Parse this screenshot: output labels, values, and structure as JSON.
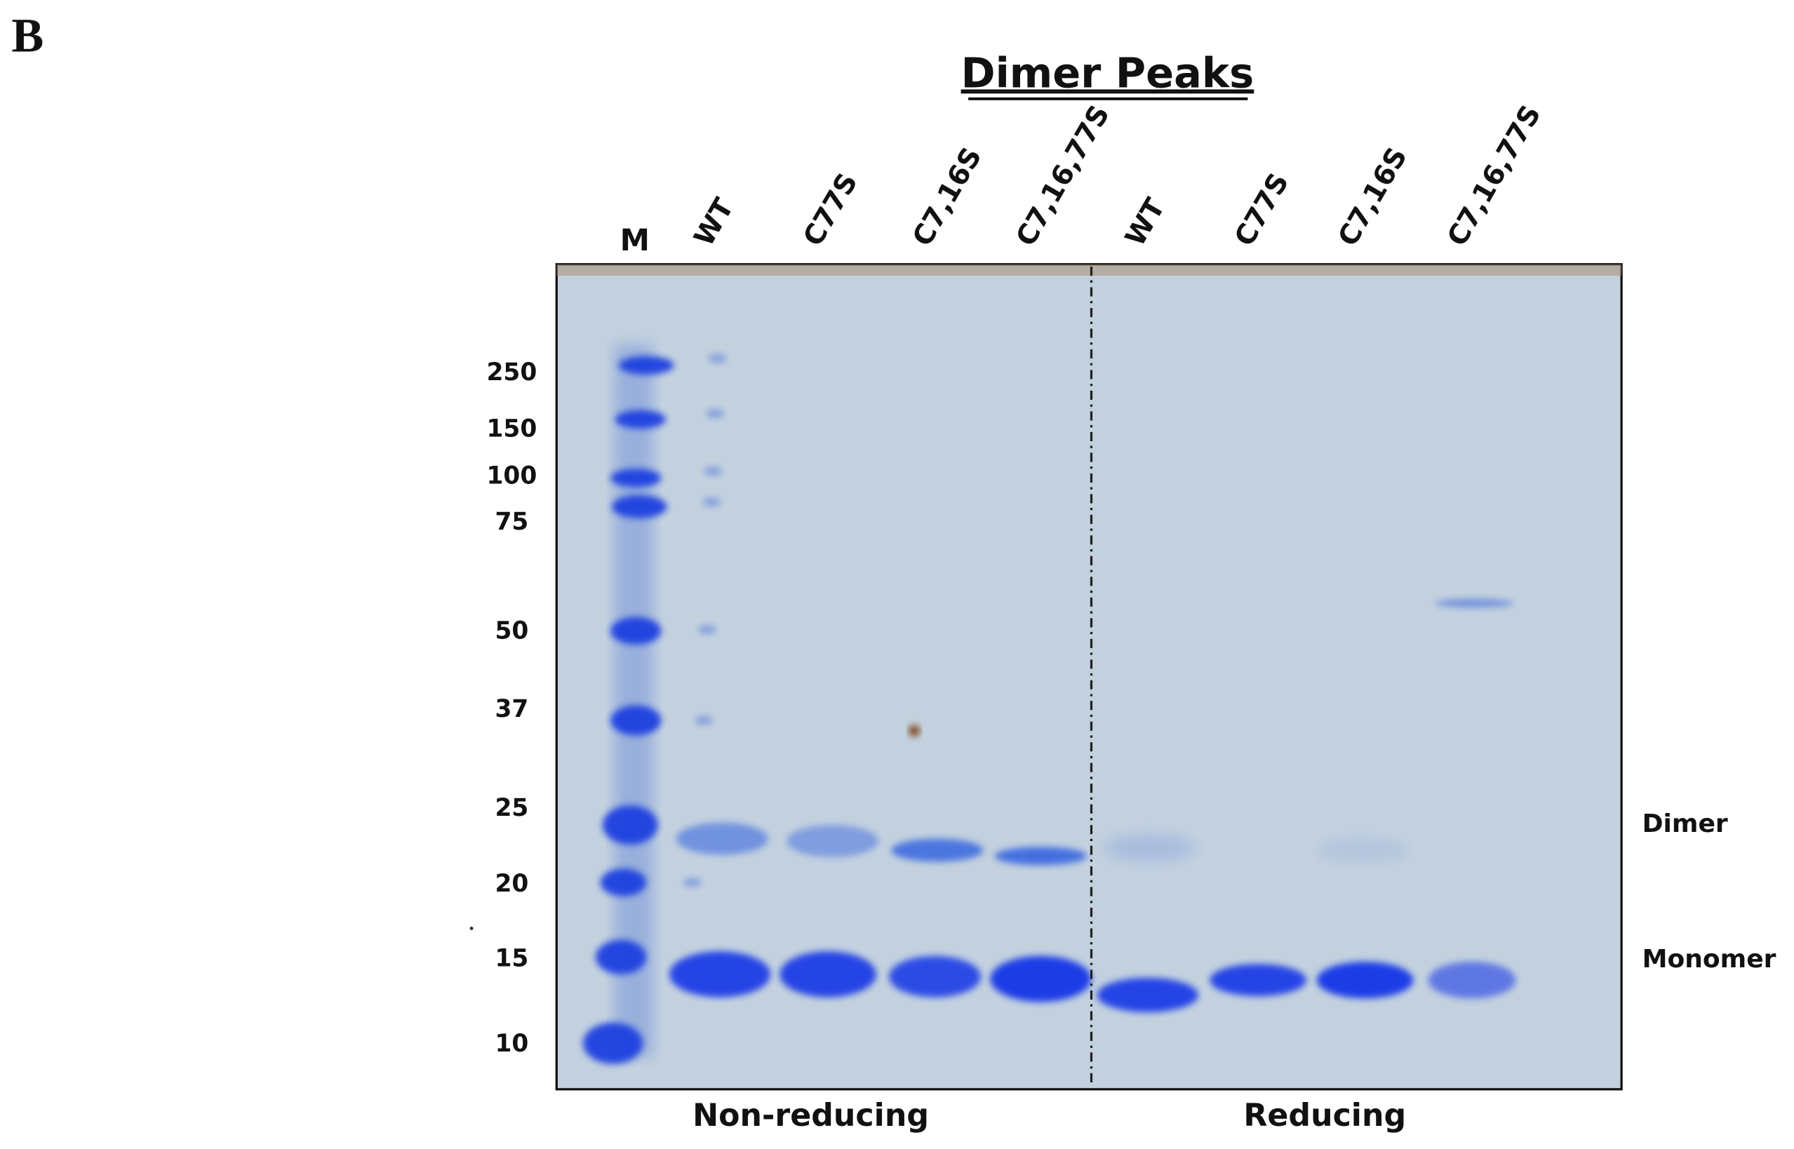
{
  "panel_label": "B",
  "title": "Dimer Peaks",
  "lanes": [
    "M",
    "WT",
    "C77S",
    "C7,16S",
    "C7,16,77S",
    "WT",
    "C77S",
    "C7,16S",
    "C7,16,77S"
  ],
  "marker_sizes": [
    250,
    150,
    100,
    75,
    50,
    37,
    25,
    20,
    15,
    10
  ],
  "band_labels": [
    "Dimer",
    "Monomer"
  ],
  "groups": [
    "Non-reducing",
    "Reducing"
  ]
}
